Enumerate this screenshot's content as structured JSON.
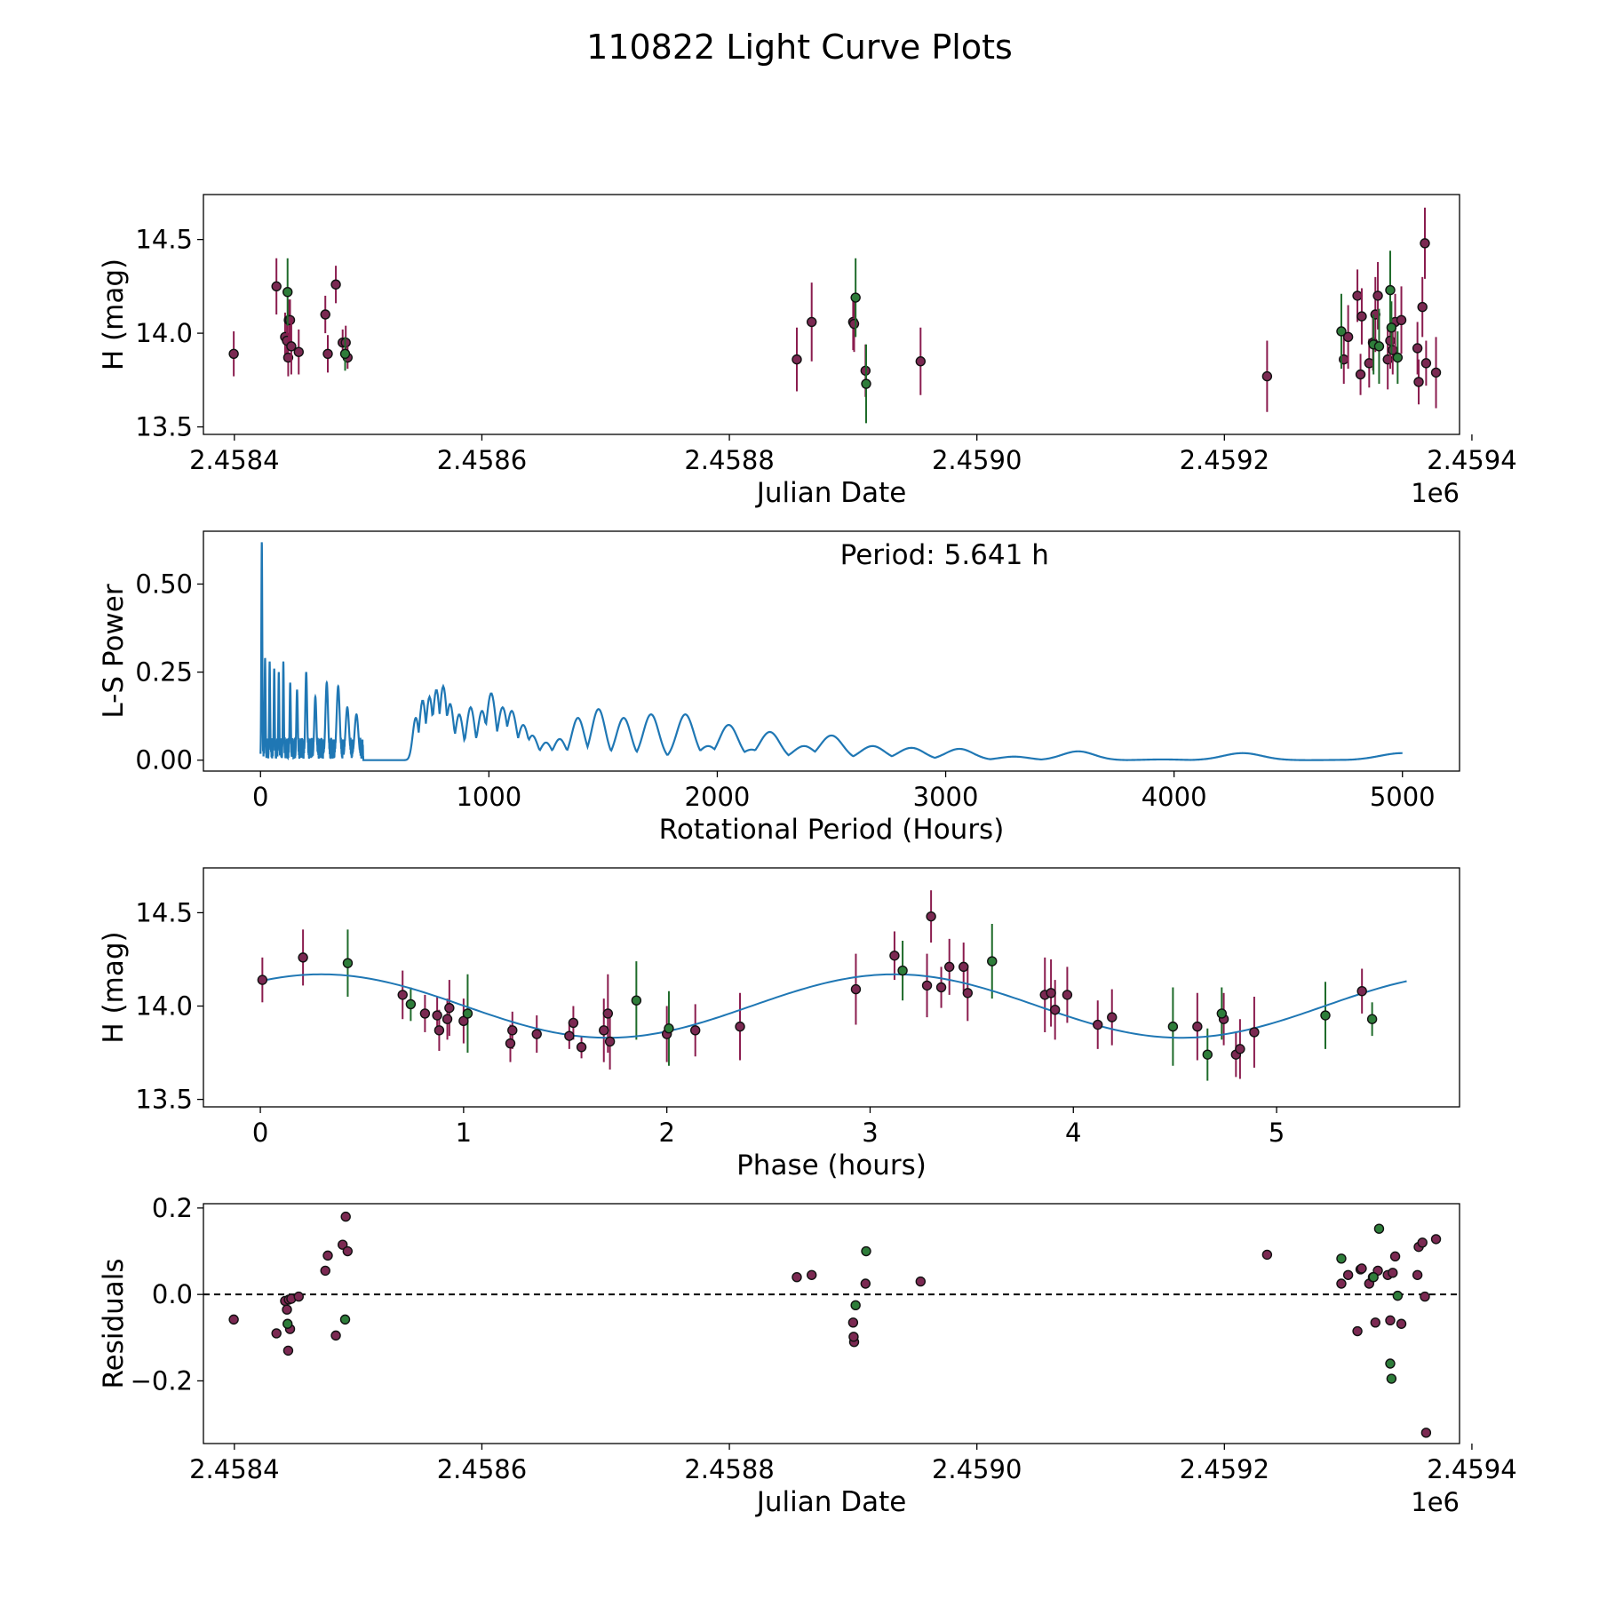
{
  "figure": {
    "title": "110822 Light Curve Plots"
  },
  "colors": {
    "magenta_points": "#7b2952",
    "green_points": "#2e7d3a",
    "periodogram_line": "#1f77b4",
    "fit_line": "#1f77b4",
    "errorbar_magenta": "#8a1c4e",
    "errorbar_green": "#1e6b2a"
  },
  "chart_data": [
    {
      "id": "lightcurve",
      "type": "scatter",
      "title": "",
      "xlabel": "Julian Date",
      "ylabel": "H (mag)",
      "offset_label": "1e6",
      "xlim": [
        2458375,
        2459390
      ],
      "ylim": [
        13.46,
        14.74
      ],
      "xticks": [
        2458400,
        2458600,
        2458800,
        2459000,
        2459200,
        2459400
      ],
      "xtick_labels": [
        "2.4584",
        "2.4586",
        "2.4588",
        "2.4590",
        "2.4592",
        "2.4594"
      ],
      "yticks": [
        13.5,
        14.0,
        14.5
      ],
      "ytick_labels": [
        "13.5",
        "14.0",
        "14.5"
      ],
      "series": [
        {
          "name": "magenta",
          "x": [
            2458399.5,
            2458434,
            2458441,
            2458442.5,
            2458443.5,
            2458444,
            2458445,
            2458446,
            2458452,
            2458473.5,
            2458475.5,
            2458482,
            2458487.5,
            2458490,
            2458491.5,
            2458854.5,
            2458866.5,
            2458900,
            2458900.8,
            2458910,
            2458954.5,
            2459234.5,
            2459296.5,
            2459300,
            2459307.5,
            2459310,
            2459311,
            2459317,
            2459320,
            2459322,
            2459324,
            2459332,
            2459334,
            2459336,
            2459338,
            2459343,
            2459356,
            2459357,
            2459360,
            2459362,
            2459363,
            2459371
          ],
          "y": [
            13.89,
            14.25,
            13.98,
            13.96,
            13.87,
            14.07,
            14.07,
            13.93,
            13.9,
            14.1,
            13.89,
            14.26,
            13.95,
            13.95,
            13.87,
            13.86,
            14.06,
            14.06,
            14.05,
            13.8,
            13.85,
            13.77,
            13.86,
            13.98,
            14.2,
            13.78,
            14.09,
            13.84,
            13.95,
            14.1,
            14.2,
            13.86,
            13.96,
            13.91,
            14.06,
            14.07,
            13.92,
            13.74,
            14.14,
            14.48,
            13.84,
            13.79
          ],
          "yerr": [
            0.12,
            0.15,
            0.13,
            0.1,
            0.1,
            0.11,
            0.11,
            0.15,
            0.12,
            0.1,
            0.1,
            0.1,
            0.07,
            0.09,
            0.06,
            0.17,
            0.21,
            0.15,
            0.15,
            0.14,
            0.18,
            0.19,
            0.13,
            0.17,
            0.14,
            0.11,
            0.15,
            0.13,
            0.15,
            0.2,
            0.18,
            0.16,
            0.15,
            0.13,
            0.15,
            0.18,
            0.14,
            0.12,
            0.16,
            0.19,
            0.12,
            0.19
          ]
        },
        {
          "name": "green",
          "x": [
            2458443,
            2458489.5,
            2458902,
            2458910.5,
            2459294.5,
            2459320.5,
            2459325,
            2459334,
            2459335,
            2459340
          ],
          "y": [
            14.22,
            13.89,
            14.19,
            13.73,
            14.01,
            13.94,
            13.93,
            14.23,
            14.03,
            13.87
          ],
          "yerr": [
            0.18,
            0.09,
            0.21,
            0.21,
            0.2,
            0.16,
            0.2,
            0.21,
            0.14,
            0.14
          ]
        }
      ]
    },
    {
      "id": "periodogram",
      "type": "line",
      "title": "",
      "xlabel": "Rotational Period (Hours)",
      "ylabel": "L-S Power",
      "annotation": "Period: 5.641 h",
      "xlim": [
        -250,
        5250
      ],
      "ylim": [
        -0.031,
        0.65
      ],
      "xticks": [
        0,
        1000,
        2000,
        3000,
        4000,
        5000
      ],
      "xtick_labels": [
        "0",
        "1000",
        "2000",
        "3000",
        "4000",
        "5000"
      ],
      "yticks": [
        0.0,
        0.25,
        0.5
      ],
      "ytick_labels": [
        "0.00",
        "0.25",
        "0.50"
      ],
      "peaks": {
        "period": [
          5.641,
          20,
          40,
          60,
          80,
          100,
          130,
          160,
          200,
          240,
          290,
          340,
          380,
          420,
          680,
          710,
          740,
          770,
          800,
          830,
          870,
          920,
          970,
          1010,
          1060,
          1100,
          1150,
          1190,
          1250,
          1310,
          1390,
          1480,
          1590,
          1710,
          1860,
          1960,
          2050,
          2150,
          2230,
          2380,
          2500,
          2680,
          2850,
          3060,
          3300,
          3580,
          3950,
          4300,
          4800,
          5000
        ],
        "power": [
          0.62,
          0.29,
          0.28,
          0.26,
          0.25,
          0.28,
          0.22,
          0.2,
          0.25,
          0.18,
          0.22,
          0.21,
          0.15,
          0.13,
          0.12,
          0.17,
          0.18,
          0.2,
          0.21,
          0.16,
          0.13,
          0.15,
          0.14,
          0.19,
          0.15,
          0.14,
          0.1,
          0.07,
          0.05,
          0.06,
          0.12,
          0.145,
          0.12,
          0.13,
          0.13,
          0.04,
          0.1,
          0.03,
          0.08,
          0.04,
          0.07,
          0.04,
          0.035,
          0.032,
          0.01,
          0.025,
          0.002,
          0.02,
          0.001,
          0.02
        ]
      }
    },
    {
      "id": "phased",
      "type": "scatter",
      "title": "",
      "xlabel": "Phase (hours)",
      "ylabel": "H (mag)",
      "xlim": [
        -0.28,
        5.9
      ],
      "ylim": [
        13.46,
        14.74
      ],
      "xticks": [
        0,
        1,
        2,
        3,
        4,
        5
      ],
      "xtick_labels": [
        "0",
        "1",
        "2",
        "3",
        "4",
        "5"
      ],
      "yticks": [
        13.5,
        14.0,
        14.5
      ],
      "ytick_labels": [
        "13.5",
        "14.0",
        "14.5"
      ],
      "fit": {
        "period": 5.641,
        "mean": 14.0,
        "amplitude": 0.17,
        "peak_phase": 0.3
      },
      "series": [
        {
          "name": "magenta",
          "x": [
            0.01,
            0.21,
            0.7,
            0.81,
            0.87,
            0.88,
            0.92,
            0.93,
            1.0,
            1.23,
            1.24,
            1.36,
            1.52,
            1.54,
            1.58,
            1.69,
            1.71,
            1.72,
            2.0,
            2.14,
            2.36,
            2.93,
            3.12,
            3.28,
            3.3,
            3.35,
            3.39,
            3.46,
            3.48,
            3.86,
            3.89,
            3.91,
            3.97,
            4.12,
            4.19,
            4.61,
            4.74,
            4.8,
            4.82,
            4.89,
            5.42
          ],
          "y": [
            14.14,
            14.26,
            14.06,
            13.96,
            13.95,
            13.87,
            13.93,
            13.99,
            13.92,
            13.8,
            13.87,
            13.85,
            13.84,
            13.91,
            13.78,
            13.87,
            13.96,
            13.81,
            13.85,
            13.87,
            13.89,
            14.09,
            14.27,
            14.11,
            14.48,
            14.1,
            14.21,
            14.21,
            14.07,
            14.06,
            14.07,
            13.98,
            14.06,
            13.9,
            13.94,
            13.89,
            13.93,
            13.74,
            13.77,
            13.86,
            14.08
          ]
        },
        {
          "name": "green",
          "x": [
            0.43,
            0.74,
            1.02,
            1.85,
            2.01,
            3.16,
            3.6,
            4.49,
            4.66,
            4.73,
            5.24,
            5.47
          ],
          "y": [
            14.23,
            14.01,
            13.96,
            14.03,
            13.88,
            14.19,
            14.24,
            13.89,
            13.74,
            13.96,
            13.95,
            13.93
          ]
        }
      ]
    },
    {
      "id": "residuals",
      "type": "scatter",
      "title": "",
      "xlabel": "Julian Date",
      "ylabel": "Residuals",
      "offset_label": "1e6",
      "xlim": [
        2458375,
        2459390
      ],
      "ylim": [
        -0.345,
        0.21
      ],
      "xticks": [
        2458400,
        2458600,
        2458800,
        2459000,
        2459200,
        2459400
      ],
      "xtick_labels": [
        "2.4584",
        "2.4586",
        "2.4588",
        "2.4590",
        "2.4592",
        "2.4594"
      ],
      "yticks": [
        -0.2,
        0.0,
        0.2
      ],
      "ytick_labels": [
        "−0.2",
        "0.0",
        "0.2"
      ],
      "zero_line": 0.0,
      "series": [
        {
          "name": "magenta",
          "x": [
            2458399.5,
            2458434,
            2458441,
            2458442.5,
            2458443.5,
            2458444,
            2458445,
            2458446,
            2458452,
            2458473.5,
            2458475.5,
            2458482,
            2458487.5,
            2458490,
            2458491.5,
            2458854.5,
            2458866.5,
            2458900,
            2458900.8,
            2458900.4,
            2458910,
            2458954.5,
            2459234.5,
            2459294.5,
            2459300,
            2459307.5,
            2459310,
            2459311,
            2459317,
            2459320,
            2459322,
            2459324,
            2459332,
            2459334,
            2459336,
            2459338,
            2459343,
            2459356,
            2459357,
            2459360,
            2459362,
            2459363,
            2459371
          ],
          "y": [
            -0.058,
            -0.09,
            -0.015,
            -0.035,
            -0.13,
            -0.012,
            -0.08,
            -0.01,
            -0.005,
            0.055,
            0.09,
            -0.095,
            0.115,
            0.18,
            0.1,
            0.04,
            0.045,
            -0.065,
            -0.11,
            -0.098,
            0.025,
            0.03,
            0.092,
            0.025,
            0.045,
            -0.085,
            0.058,
            0.06,
            0.025,
            0.04,
            -0.065,
            0.055,
            0.045,
            -0.06,
            0.05,
            0.088,
            -0.068,
            0.045,
            0.11,
            0.12,
            -0.005,
            -0.32,
            0.128
          ]
        },
        {
          "name": "green",
          "x": [
            2458443,
            2458489.5,
            2458902,
            2458910.5,
            2459294.5,
            2459320.5,
            2459325,
            2459334,
            2459335,
            2459340
          ],
          "y": [
            -0.068,
            -0.058,
            -0.025,
            0.1,
            0.083,
            0.04,
            0.152,
            -0.16,
            -0.195,
            -0.003
          ]
        }
      ]
    }
  ]
}
